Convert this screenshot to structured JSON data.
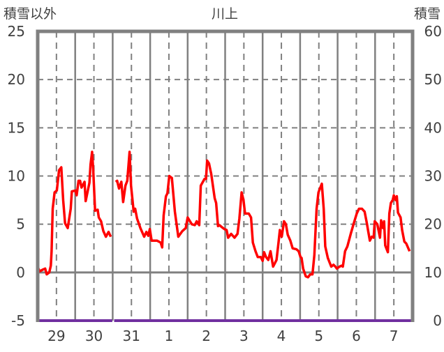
{
  "chart_data": {
    "type": "line",
    "title": "川上",
    "ylabel_left": "積雪以外",
    "ylabel_right": "積雪",
    "x_unit": "days since Mar 29 00:00",
    "xlim": [
      0,
      10
    ],
    "ylim_left": [
      -5,
      25
    ],
    "ylim_right": [
      0,
      60
    ],
    "yticks_left": [
      "-5",
      "0",
      "5",
      "10",
      "15",
      "20",
      "25"
    ],
    "yticks_right": [
      "0",
      "10",
      "20",
      "30",
      "40",
      "50",
      "60"
    ],
    "xtick_labels": [
      "29",
      "30",
      "31",
      "1",
      "2",
      "3",
      "4",
      "5",
      "6",
      "7"
    ],
    "grid": true,
    "colors": {
      "primary": "#ff0000",
      "snow": "#7030a0",
      "frame": "#808080",
      "grid": "#808080"
    },
    "series": [
      {
        "name": "積雪以外",
        "axis": "left",
        "segments": [
          [
            [
              0.0,
              0.6
            ],
            [
              0.05,
              0.1
            ],
            [
              0.14,
              0.3
            ],
            [
              0.2,
              0.4
            ],
            [
              0.24,
              -0.2
            ],
            [
              0.31,
              0
            ],
            [
              0.35,
              0.7
            ],
            [
              0.37,
              2.2
            ],
            [
              0.4,
              6.6
            ],
            [
              0.45,
              8.3
            ],
            [
              0.51,
              8.5
            ],
            [
              0.57,
              10.6
            ],
            [
              0.63,
              10.9
            ],
            [
              0.68,
              7.5
            ],
            [
              0.73,
              5.1
            ],
            [
              0.8,
              4.6
            ],
            [
              0.88,
              6.6
            ],
            [
              0.91,
              8.4
            ],
            [
              1.01,
              8.5
            ],
            [
              1.04,
              8.0
            ],
            [
              1.09,
              9.5
            ],
            [
              1.13,
              9.5
            ],
            [
              1.17,
              8.8
            ],
            [
              1.25,
              9.4
            ],
            [
              1.28,
              7.4
            ],
            [
              1.38,
              9.3
            ],
            [
              1.41,
              11.2
            ],
            [
              1.45,
              12.5
            ],
            [
              1.48,
              10.7
            ],
            [
              1.53,
              6.4
            ],
            [
              1.6,
              6.5
            ],
            [
              1.63,
              5.7
            ],
            [
              1.69,
              5.3
            ],
            [
              1.75,
              4.3
            ],
            [
              1.82,
              3.7
            ],
            [
              1.89,
              4.2
            ],
            [
              1.95,
              3.7
            ]
          ],
          [
            [
              2.08,
              9.4
            ],
            [
              2.12,
              9.5
            ],
            [
              2.17,
              8.7
            ],
            [
              2.23,
              9.4
            ],
            [
              2.28,
              7.3
            ],
            [
              2.34,
              9.0
            ],
            [
              2.39,
              9.5
            ],
            [
              2.45,
              12.5
            ],
            [
              2.49,
              9.0
            ],
            [
              2.56,
              6.3
            ],
            [
              2.6,
              6.6
            ],
            [
              2.65,
              5.6
            ],
            [
              2.74,
              4.6
            ],
            [
              2.84,
              3.7
            ],
            [
              2.9,
              4.2
            ],
            [
              2.95,
              3.8
            ],
            [
              2.99,
              4.5
            ],
            [
              3.04,
              3.3
            ],
            [
              3.18,
              3.3
            ],
            [
              3.28,
              3.1
            ],
            [
              3.32,
              2.6
            ],
            [
              3.36,
              5.9
            ],
            [
              3.42,
              7.9
            ],
            [
              3.46,
              8.2
            ],
            [
              3.51,
              10.0
            ],
            [
              3.58,
              9.8
            ],
            [
              3.66,
              6.3
            ],
            [
              3.75,
              3.7
            ],
            [
              3.86,
              4.3
            ],
            [
              3.95,
              4.6
            ],
            [
              4.0,
              5.7
            ],
            [
              4.11,
              5.0
            ],
            [
              4.19,
              4.9
            ],
            [
              4.24,
              5.3
            ],
            [
              4.31,
              4.9
            ],
            [
              4.35,
              9.0
            ],
            [
              4.45,
              9.7
            ],
            [
              4.49,
              9.7
            ],
            [
              4.52,
              11.6
            ],
            [
              4.57,
              11.3
            ],
            [
              4.63,
              10.2
            ],
            [
              4.72,
              7.7
            ],
            [
              4.76,
              7.2
            ],
            [
              4.81,
              4.8
            ],
            [
              4.85,
              4.9
            ],
            [
              4.91,
              4.7
            ],
            [
              4.98,
              4.5
            ],
            [
              5.04,
              4.4
            ],
            [
              5.08,
              3.6
            ],
            [
              5.16,
              4.0
            ],
            [
              5.25,
              3.6
            ],
            [
              5.33,
              4.0
            ],
            [
              5.38,
              5.6
            ],
            [
              5.44,
              8.3
            ],
            [
              5.49,
              7.5
            ],
            [
              5.53,
              6.1
            ],
            [
              5.63,
              6.1
            ],
            [
              5.69,
              5.7
            ],
            [
              5.74,
              3.1
            ],
            [
              5.81,
              2.2
            ],
            [
              5.87,
              1.6
            ],
            [
              5.95,
              1.6
            ],
            [
              6.0,
              1.2
            ],
            [
              6.04,
              2.1
            ],
            [
              6.09,
              1.6
            ],
            [
              6.15,
              1.3
            ],
            [
              6.21,
              2.2
            ],
            [
              6.28,
              0.6
            ],
            [
              6.37,
              1.3
            ],
            [
              6.42,
              3.0
            ],
            [
              6.46,
              4.4
            ],
            [
              6.51,
              3.7
            ],
            [
              6.57,
              5.3
            ],
            [
              6.62,
              5.0
            ],
            [
              6.67,
              3.9
            ],
            [
              6.74,
              3.3
            ],
            [
              6.8,
              2.5
            ],
            [
              6.9,
              2.4
            ],
            [
              6.96,
              2.2
            ],
            [
              7.01,
              1.6
            ],
            [
              7.04,
              1.5
            ],
            [
              7.08,
              0.4
            ],
            [
              7.15,
              -0.4
            ],
            [
              7.21,
              -0.5
            ],
            [
              7.27,
              -0.2
            ],
            [
              7.33,
              -0.2
            ],
            [
              7.38,
              1.8
            ],
            [
              7.44,
              6.6
            ],
            [
              7.49,
              8.3
            ],
            [
              7.58,
              9.2
            ],
            [
              7.63,
              6.6
            ],
            [
              7.67,
              2.7
            ],
            [
              7.74,
              1.5
            ],
            [
              7.83,
              0.6
            ],
            [
              7.89,
              0.8
            ],
            [
              7.94,
              0.6
            ],
            [
              7.98,
              0.4
            ],
            [
              8.05,
              0.6
            ],
            [
              8.11,
              0.7
            ],
            [
              8.14,
              0.6
            ],
            [
              8.2,
              2.2
            ],
            [
              8.26,
              2.7
            ],
            [
              8.35,
              4.0
            ],
            [
              8.44,
              5.2
            ],
            [
              8.51,
              6.1
            ],
            [
              8.57,
              6.6
            ],
            [
              8.65,
              6.6
            ],
            [
              8.72,
              6.3
            ],
            [
              8.78,
              5.1
            ],
            [
              8.82,
              4.2
            ],
            [
              8.86,
              3.3
            ],
            [
              8.91,
              3.7
            ],
            [
              8.96,
              3.6
            ],
            [
              8.99,
              5.3
            ],
            [
              9.06,
              5.0
            ],
            [
              9.13,
              3.6
            ],
            [
              9.16,
              5.4
            ],
            [
              9.21,
              4.6
            ],
            [
              9.24,
              5.3
            ],
            [
              9.27,
              2.8
            ],
            [
              9.34,
              2.1
            ],
            [
              9.38,
              6.1
            ],
            [
              9.42,
              7.2
            ],
            [
              9.47,
              7.5
            ],
            [
              9.5,
              8.0
            ],
            [
              9.55,
              7.5
            ],
            [
              9.58,
              7.9
            ],
            [
              9.61,
              6.2
            ],
            [
              9.68,
              5.7
            ],
            [
              9.72,
              4.4
            ],
            [
              9.78,
              3.2
            ],
            [
              9.83,
              3.0
            ],
            [
              9.92,
              2.2
            ]
          ]
        ]
      },
      {
        "name": "積雪",
        "axis": "right",
        "segments": [
          [
            [
              0,
              0
            ],
            [
              1.99,
              0
            ]
          ],
          [
            [
              2.04,
              0
            ],
            [
              10,
              0
            ]
          ]
        ]
      }
    ]
  }
}
